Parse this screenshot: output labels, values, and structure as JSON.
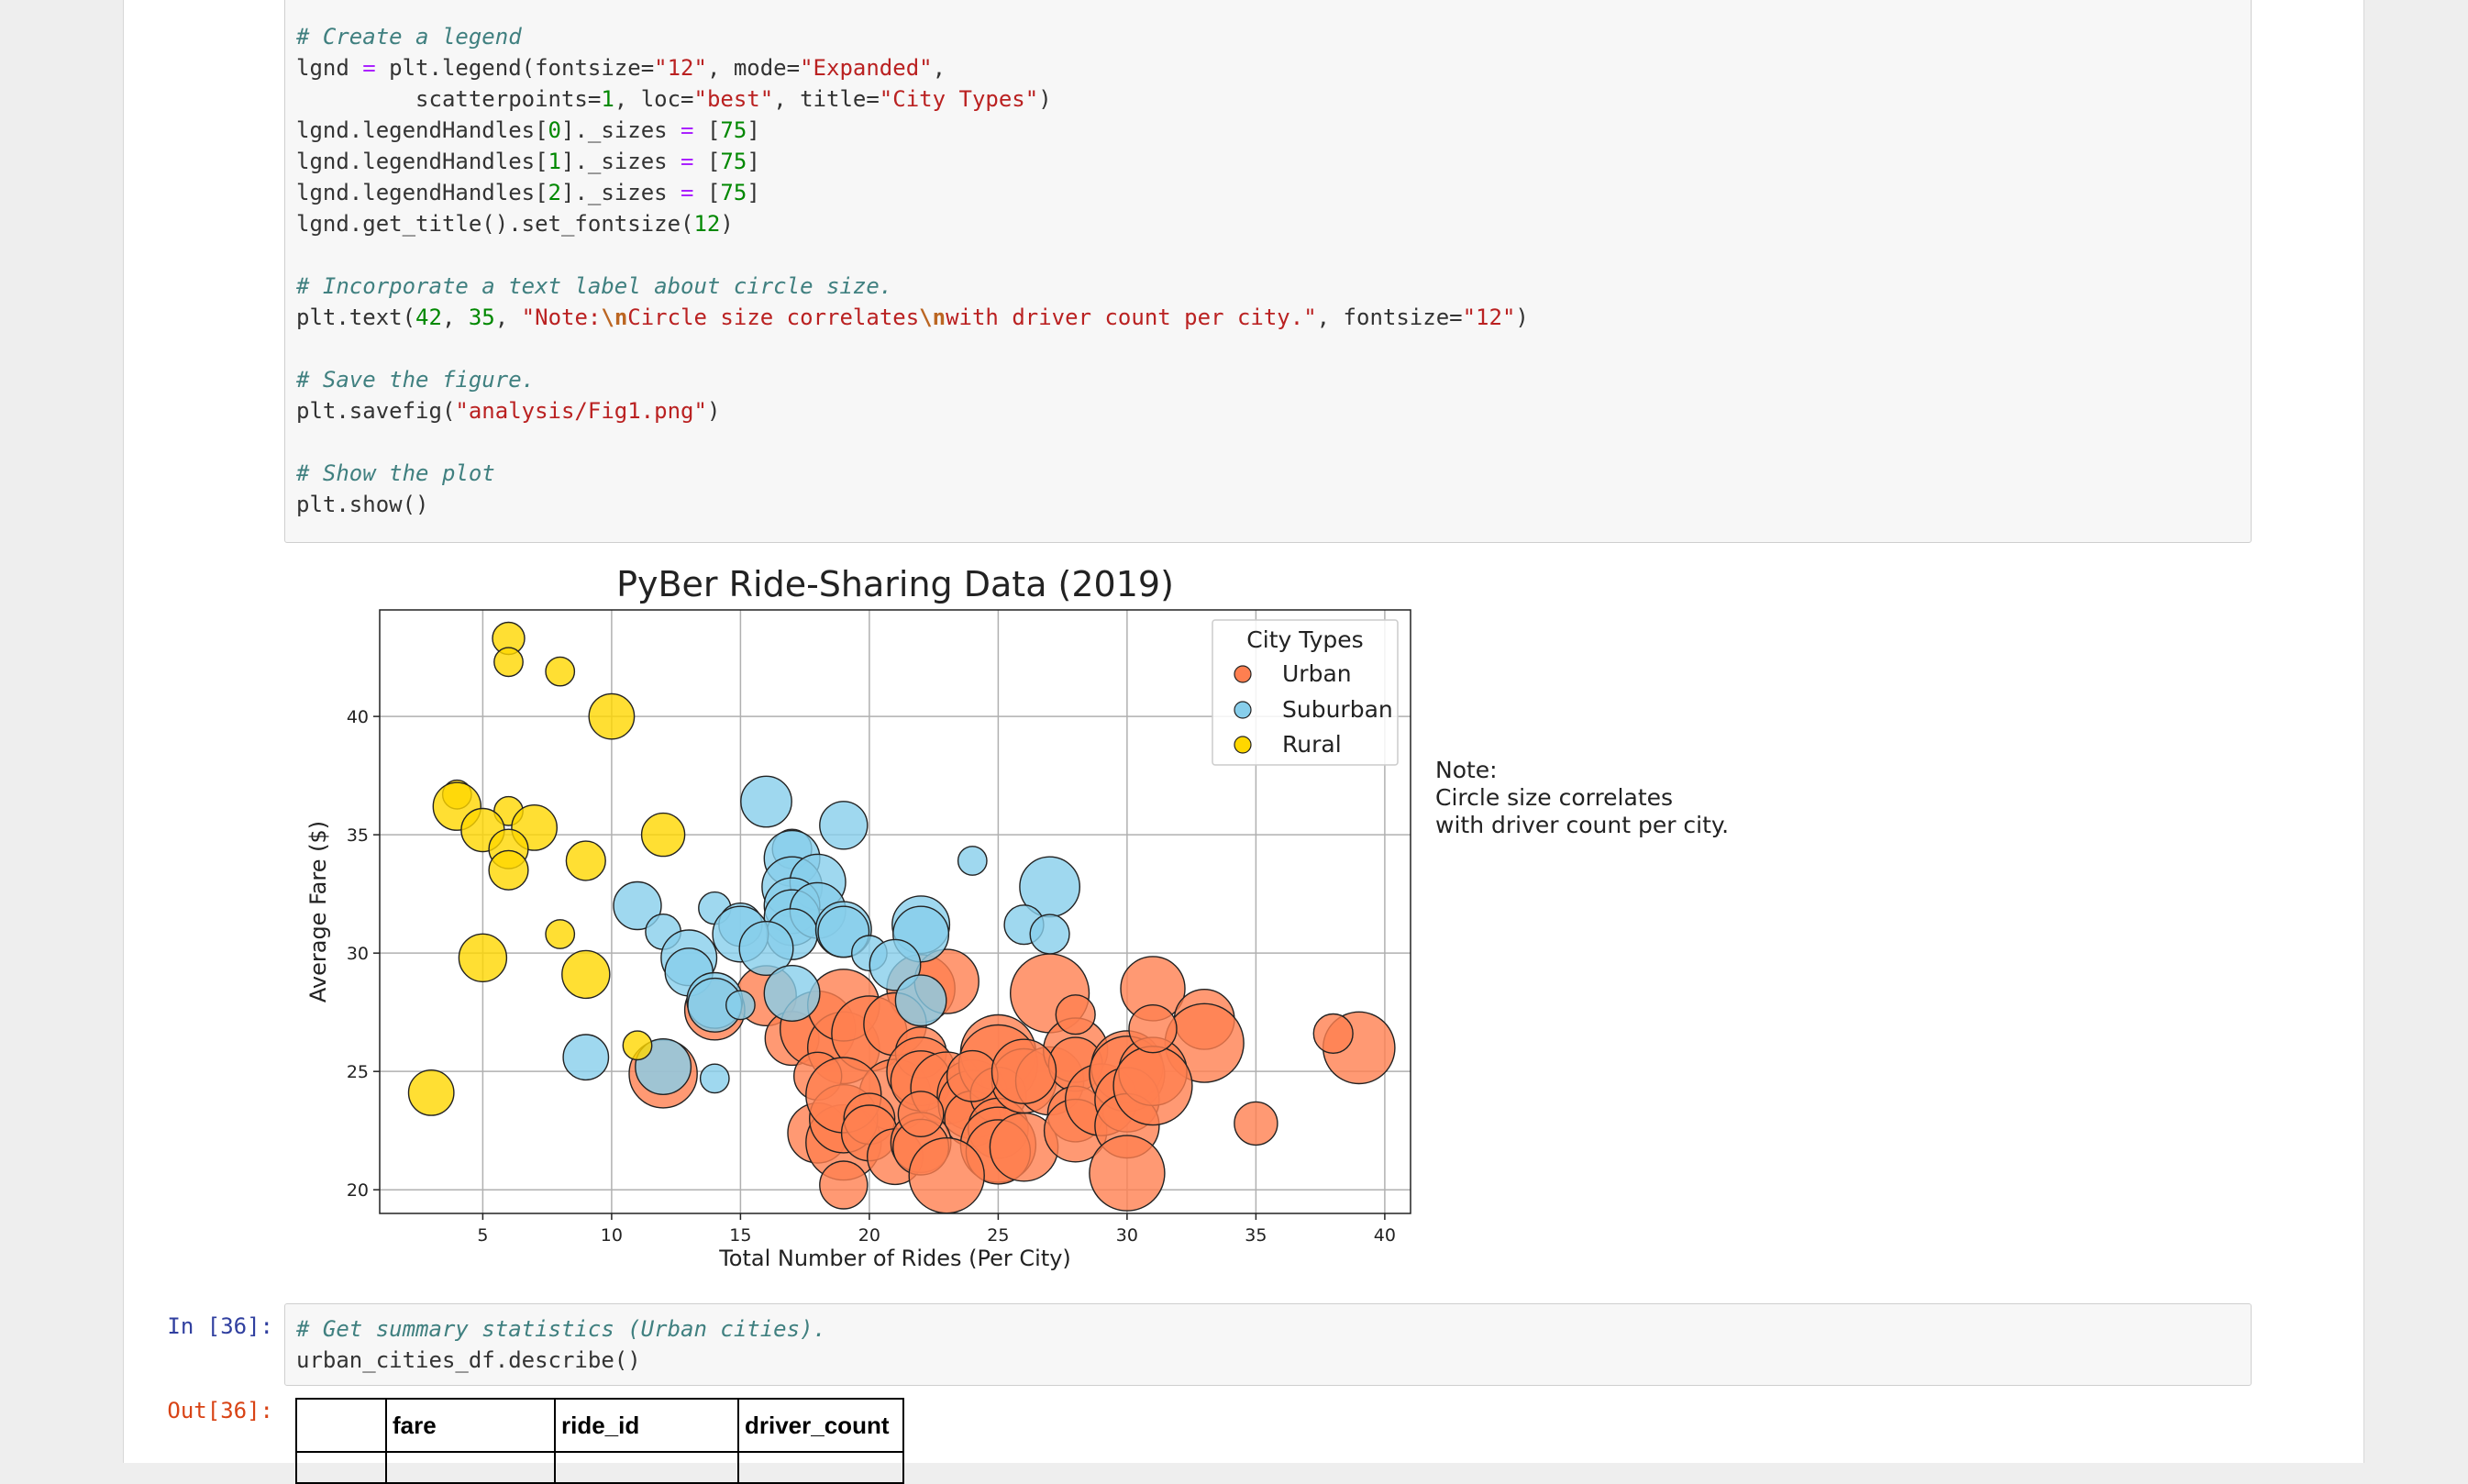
{
  "cell1": {
    "code_lines": [
      [
        {
          "t": "# Create a legend",
          "c": "comment"
        }
      ],
      [
        {
          "t": "lgnd "
        },
        {
          "t": "=",
          "c": "op"
        },
        {
          "t": " plt.legend(fontsize="
        },
        {
          "t": "\"12\"",
          "c": "string"
        },
        {
          "t": ", mode="
        },
        {
          "t": "\"Expanded\"",
          "c": "string"
        },
        {
          "t": ","
        }
      ],
      [
        {
          "t": "         scatterpoints="
        },
        {
          "t": "1",
          "c": "number"
        },
        {
          "t": ", loc="
        },
        {
          "t": "\"best\"",
          "c": "string"
        },
        {
          "t": ", title="
        },
        {
          "t": "\"City Types\"",
          "c": "string"
        },
        {
          "t": ")"
        }
      ],
      [
        {
          "t": "lgnd.legendHandles["
        },
        {
          "t": "0",
          "c": "number"
        },
        {
          "t": "]._sizes "
        },
        {
          "t": "=",
          "c": "op"
        },
        {
          "t": " ["
        },
        {
          "t": "75",
          "c": "number"
        },
        {
          "t": "]"
        }
      ],
      [
        {
          "t": "lgnd.legendHandles["
        },
        {
          "t": "1",
          "c": "number"
        },
        {
          "t": "]._sizes "
        },
        {
          "t": "=",
          "c": "op"
        },
        {
          "t": " ["
        },
        {
          "t": "75",
          "c": "number"
        },
        {
          "t": "]"
        }
      ],
      [
        {
          "t": "lgnd.legendHandles["
        },
        {
          "t": "2",
          "c": "number"
        },
        {
          "t": "]._sizes "
        },
        {
          "t": "=",
          "c": "op"
        },
        {
          "t": " ["
        },
        {
          "t": "75",
          "c": "number"
        },
        {
          "t": "]"
        }
      ],
      [
        {
          "t": "lgnd.get_title().set_fontsize("
        },
        {
          "t": "12",
          "c": "number"
        },
        {
          "t": ")"
        }
      ],
      [],
      [
        {
          "t": "# Incorporate a text label about circle size.",
          "c": "comment"
        }
      ],
      [
        {
          "t": "plt.text("
        },
        {
          "t": "42",
          "c": "number"
        },
        {
          "t": ", "
        },
        {
          "t": "35",
          "c": "number"
        },
        {
          "t": ", "
        },
        {
          "t": "\"Note:",
          "c": "string"
        },
        {
          "t": "\\n",
          "c": "escape"
        },
        {
          "t": "Circle size correlates",
          "c": "string"
        },
        {
          "t": "\\n",
          "c": "escape"
        },
        {
          "t": "with driver count per city.\"",
          "c": "string"
        },
        {
          "t": ", fontsize="
        },
        {
          "t": "\"12\"",
          "c": "string"
        },
        {
          "t": ")"
        }
      ],
      [],
      [
        {
          "t": "# Save the figure.",
          "c": "comment"
        }
      ],
      [
        {
          "t": "plt.savefig("
        },
        {
          "t": "\"analysis/Fig1.png\"",
          "c": "string"
        },
        {
          "t": ")"
        }
      ],
      [],
      [
        {
          "t": "# Show the plot",
          "c": "comment"
        }
      ],
      [
        {
          "t": "plt.show()"
        }
      ]
    ]
  },
  "cell2": {
    "in_prompt": "In [36]:",
    "out_prompt": "Out[36]:",
    "code_lines": [
      [
        {
          "t": "# Get summary statistics (Urban cities).",
          "c": "comment"
        }
      ],
      [
        {
          "t": "urban_cities_df.describe()"
        }
      ]
    ],
    "table_headers": [
      "",
      "fare",
      "ride_id",
      "driver_count"
    ]
  },
  "chart_data": {
    "type": "scatter",
    "title": "PyBer Ride-Sharing Data (2019)",
    "xlabel": "Total Number of Rides (Per City)",
    "ylabel": "Average Fare ($)",
    "xlim": [
      1,
      41
    ],
    "ylim": [
      19,
      44.5
    ],
    "xticks": [
      5,
      10,
      15,
      20,
      25,
      30,
      35,
      40
    ],
    "yticks": [
      20,
      25,
      30,
      35,
      40
    ],
    "grid": true,
    "legend_title": "City Types",
    "legend_placement": "top-right",
    "note_lines": [
      "Note:",
      "Circle size correlates",
      "with driver count per city."
    ],
    "series": [
      {
        "name": "Urban",
        "color": "#ff7f50",
        "points": [
          [
            22,
            28.5,
            45
          ],
          [
            23,
            28.8,
            40
          ],
          [
            27,
            28.3,
            60
          ],
          [
            31,
            28.5,
            40
          ],
          [
            33,
            27.2,
            35
          ],
          [
            33,
            26.2,
            60
          ],
          [
            39,
            26,
            50
          ],
          [
            38,
            26.6,
            15
          ],
          [
            35,
            22.8,
            18
          ],
          [
            16,
            28.2,
            35
          ],
          [
            14,
            27.6,
            35
          ],
          [
            12,
            24.9,
            45
          ],
          [
            17,
            26.4,
            28
          ],
          [
            18,
            26.8,
            55
          ],
          [
            19,
            26,
            50
          ],
          [
            19,
            27.8,
            50
          ],
          [
            20,
            26.6,
            55
          ],
          [
            21,
            27,
            38
          ],
          [
            21,
            24,
            50
          ],
          [
            22,
            25.8,
            25
          ],
          [
            22,
            25,
            45
          ],
          [
            22,
            24.6,
            35
          ],
          [
            23,
            24.3,
            50
          ],
          [
            24,
            24,
            48
          ],
          [
            24,
            23.6,
            45
          ],
          [
            24,
            23,
            30
          ],
          [
            25,
            25.8,
            55
          ],
          [
            25,
            25.3,
            60
          ],
          [
            25,
            24,
            30
          ],
          [
            25,
            22.6,
            35
          ],
          [
            25,
            21.9,
            55
          ],
          [
            25,
            21.6,
            40
          ],
          [
            26,
            21.8,
            45
          ],
          [
            26,
            24.6,
            40
          ],
          [
            27,
            24.6,
            45
          ],
          [
            28,
            25.9,
            40
          ],
          [
            28,
            25.3,
            28
          ],
          [
            28,
            23.2,
            30
          ],
          [
            28,
            22.5,
            38
          ],
          [
            28,
            27.4,
            15
          ],
          [
            29,
            23.8,
            50
          ],
          [
            30,
            25.2,
            50
          ],
          [
            30,
            24.9,
            55
          ],
          [
            30,
            23.8,
            40
          ],
          [
            30,
            22.7,
            40
          ],
          [
            30,
            20.7,
            55
          ],
          [
            31,
            25,
            45
          ],
          [
            31,
            24.4,
            60
          ],
          [
            31,
            26.8,
            22
          ],
          [
            18,
            24.8,
            22
          ],
          [
            18,
            22.4,
            35
          ],
          [
            19,
            22,
            55
          ],
          [
            19,
            23,
            45
          ],
          [
            19,
            24,
            55
          ],
          [
            20,
            23,
            25
          ],
          [
            20,
            22.4,
            30
          ],
          [
            21,
            21.4,
            30
          ],
          [
            22,
            22,
            35
          ],
          [
            22,
            21.8,
            30
          ],
          [
            22,
            23.2,
            20
          ],
          [
            23,
            20.6,
            55
          ],
          [
            19,
            20.2,
            22
          ],
          [
            24,
            24.8,
            25
          ],
          [
            26,
            25,
            40
          ]
        ]
      },
      {
        "name": "Suburban",
        "color": "#87ceeb",
        "points": [
          [
            16,
            36.4,
            25
          ],
          [
            19,
            35.4,
            22
          ],
          [
            17,
            34.4,
            15
          ],
          [
            17,
            34,
            30
          ],
          [
            17,
            32.8,
            35
          ],
          [
            18,
            33,
            30
          ],
          [
            17,
            32,
            30
          ],
          [
            17,
            31.5,
            30
          ],
          [
            18,
            31.8,
            30
          ],
          [
            17,
            30.8,
            25
          ],
          [
            19,
            31,
            30
          ],
          [
            19,
            30.9,
            25
          ],
          [
            22,
            31.2,
            32
          ],
          [
            22,
            30.8,
            30
          ],
          [
            27,
            32.8,
            35
          ],
          [
            26,
            31.2,
            15
          ],
          [
            27,
            30.8,
            15
          ],
          [
            24,
            33.9,
            8
          ],
          [
            11,
            32,
            22
          ],
          [
            12,
            30.9,
            12
          ],
          [
            14,
            31.9,
            10
          ],
          [
            15,
            31.2,
            18
          ],
          [
            15,
            30.8,
            30
          ],
          [
            16,
            30.2,
            28
          ],
          [
            13,
            29.8,
            30
          ],
          [
            13,
            29.2,
            22
          ],
          [
            14,
            28,
            30
          ],
          [
            14,
            27.8,
            28
          ],
          [
            15,
            27.8,
            8
          ],
          [
            17,
            28.3,
            30
          ],
          [
            20,
            30,
            12
          ],
          [
            21,
            29.5,
            25
          ],
          [
            22,
            28,
            25
          ],
          [
            12,
            25.2,
            30
          ],
          [
            9,
            25.6,
            20
          ],
          [
            14,
            24.7,
            8
          ]
        ]
      },
      {
        "name": "Rural",
        "color": "#ffd700",
        "points": [
          [
            6,
            43.3,
            10
          ],
          [
            6,
            42.3,
            8
          ],
          [
            8,
            41.9,
            8
          ],
          [
            10,
            40,
            20
          ],
          [
            4,
            36.7,
            8
          ],
          [
            4,
            36.2,
            22
          ],
          [
            6,
            36,
            8
          ],
          [
            5,
            35.2,
            18
          ],
          [
            7,
            35.3,
            20
          ],
          [
            6,
            34.4,
            15
          ],
          [
            6,
            33.5,
            15
          ],
          [
            9,
            33.9,
            15
          ],
          [
            12,
            35,
            18
          ],
          [
            8,
            30.8,
            8
          ],
          [
            5,
            29.8,
            22
          ],
          [
            9,
            29.1,
            22
          ],
          [
            11,
            26.1,
            8
          ],
          [
            3,
            24.1,
            20
          ]
        ]
      }
    ]
  }
}
